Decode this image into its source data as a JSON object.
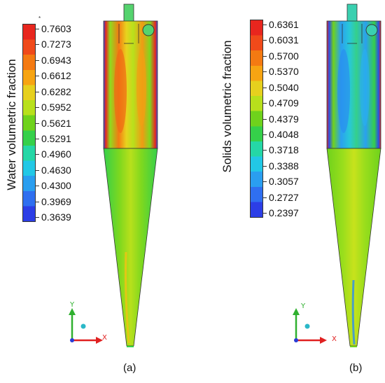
{
  "panels": [
    {
      "id": "a",
      "colorbar_title": "Water volumetric fraction",
      "ticks": [
        "0.7603",
        "0.7273",
        "0.6943",
        "0.6612",
        "0.6282",
        "0.5952",
        "0.5621",
        "0.5291",
        "0.4960",
        "0.4630",
        "0.4300",
        "0.3969",
        "0.3639"
      ],
      "caption": "(a)",
      "field_palette": "water"
    },
    {
      "id": "b",
      "colorbar_title": "Solids volumetric fraction",
      "ticks": [
        "0.6361",
        "0.6031",
        "0.5700",
        "0.5370",
        "0.5040",
        "0.4709",
        "0.4379",
        "0.4048",
        "0.3718",
        "0.3388",
        "0.3057",
        "0.2727",
        "0.2397"
      ],
      "caption": "(b)",
      "field_palette": "solids"
    }
  ],
  "axes": {
    "y": "Y",
    "x": "X"
  },
  "colors": {
    "colorbar_bands": [
      "#e8261e",
      "#f04a1a",
      "#f47a12",
      "#f7a412",
      "#e6d01e",
      "#b8e01c",
      "#6fd21c",
      "#35d04a",
      "#25d7a6",
      "#22c8e6",
      "#2a9ef0",
      "#2f6ff0",
      "#2c3ee6"
    ],
    "axis_y": "#2fb02f",
    "axis_x": "#e02020",
    "axis_z": "#2a3bd6"
  }
}
